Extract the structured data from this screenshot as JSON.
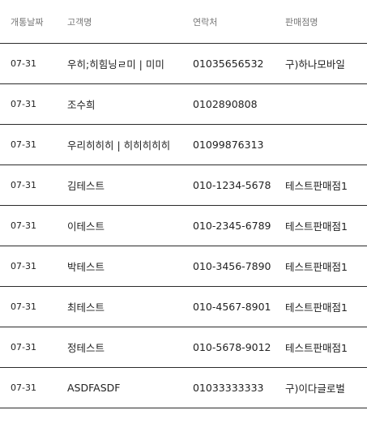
{
  "table": {
    "columns": {
      "date": "개통날짜",
      "name": "고객명",
      "phone": "연락처",
      "shop": "판매점명"
    },
    "rows": [
      {
        "date": "07-31",
        "name": "우히;히힘닝ㄹ미 | 미미",
        "phone": "01035656532",
        "shop": "구)하나모바일"
      },
      {
        "date": "07-31",
        "name": "조수희",
        "phone": "0102890808",
        "shop": ""
      },
      {
        "date": "07-31",
        "name": "우리히히히 | 히히히히히",
        "phone": "01099876313",
        "shop": ""
      },
      {
        "date": "07-31",
        "name": "김테스트",
        "phone": "010-1234-5678",
        "shop": "테스트판매점1"
      },
      {
        "date": "07-31",
        "name": "이테스트",
        "phone": "010-2345-6789",
        "shop": "테스트판매점1"
      },
      {
        "date": "07-31",
        "name": "박테스트",
        "phone": "010-3456-7890",
        "shop": "테스트판매점1"
      },
      {
        "date": "07-31",
        "name": "최테스트",
        "phone": "010-4567-8901",
        "shop": "테스트판매점1"
      },
      {
        "date": "07-31",
        "name": "정테스트",
        "phone": "010-5678-9012",
        "shop": "테스트판매점1"
      },
      {
        "date": "07-31",
        "name": "ASDFASDF",
        "phone": "01033333333",
        "shop": "구)이다글로벌"
      }
    ]
  }
}
